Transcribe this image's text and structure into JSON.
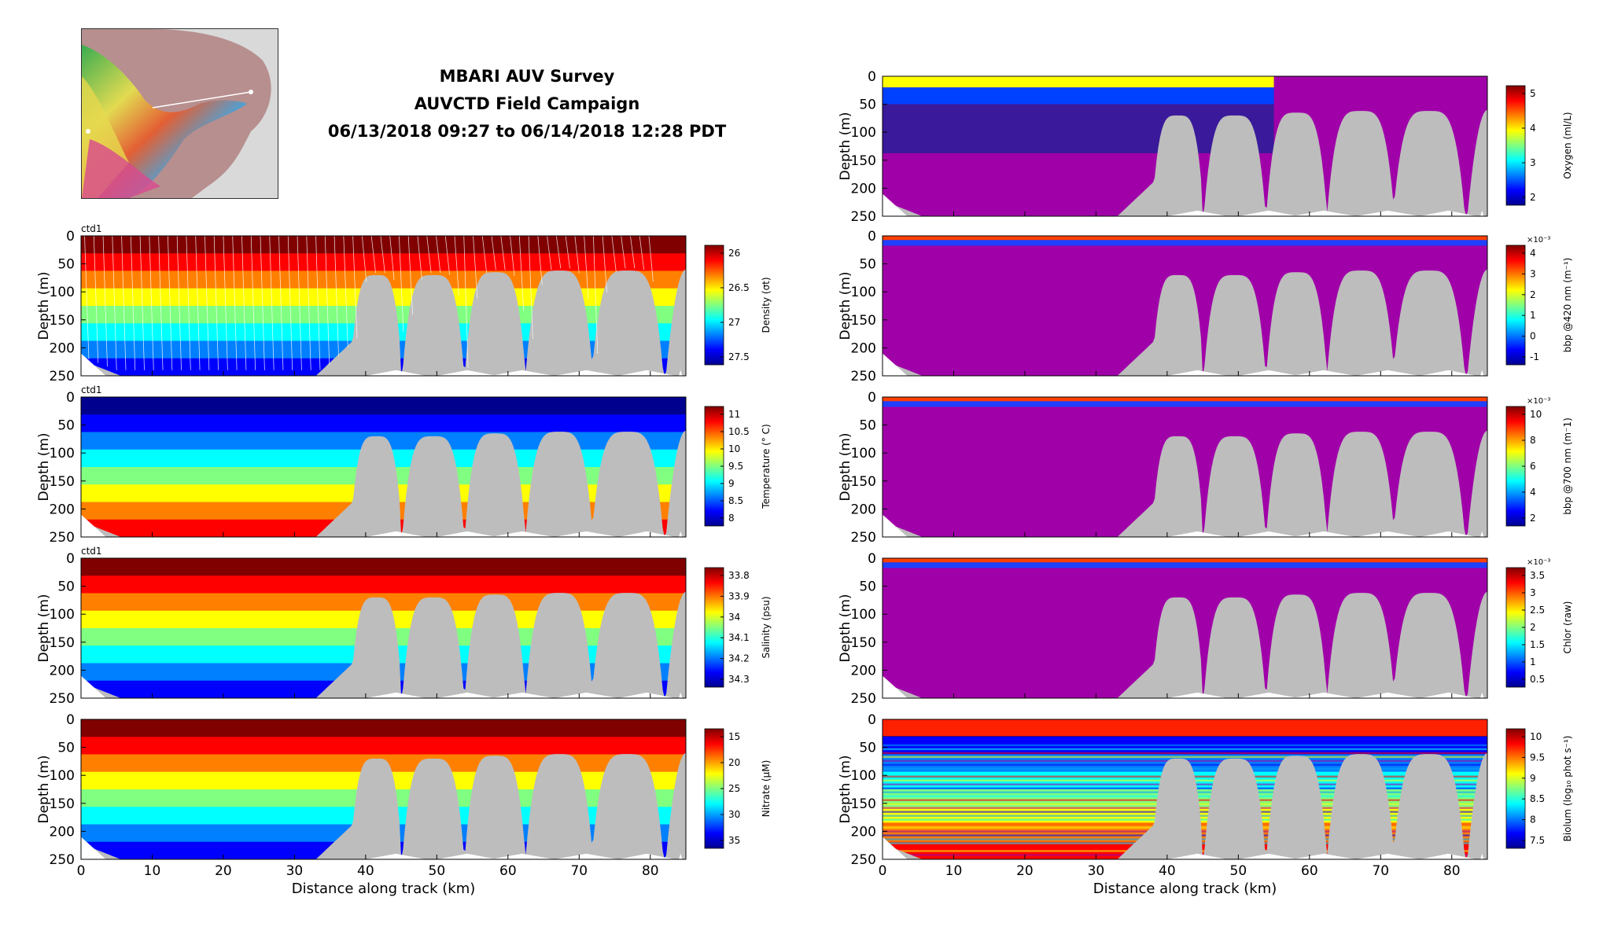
{
  "header": {
    "lines": [
      "MBARI AUV Survey",
      "AUVCTD Field Campaign",
      "06/13/2018 09:27 to 06/14/2018 12:28 PDT"
    ]
  },
  "common": {
    "xlabel": "Distance along track (km)",
    "ylabel": "Depth (m)",
    "xticks": [
      0,
      10,
      20,
      30,
      40,
      50,
      60,
      70,
      80
    ],
    "yticks": [
      0,
      50,
      100,
      150,
      200,
      250
    ],
    "xlim": [
      0,
      85
    ],
    "ylim": [
      0,
      250
    ],
    "seafloor_color": "#bdbdbd"
  },
  "chart_data": [
    {
      "id": "density",
      "type": "heatmap",
      "panel_label": "ctd1",
      "cbar_label": "Density (σt)",
      "cbar_ticks": [
        "26",
        "26.5",
        "27",
        "27.5"
      ],
      "cmap": "jet_r",
      "profile_lines": true
    },
    {
      "id": "temperature",
      "type": "heatmap",
      "panel_label": "ctd1",
      "cbar_label": "Temperature (° C)",
      "cbar_ticks": [
        "11",
        "10.5",
        "10",
        "9.5",
        "9",
        "8.5",
        "8"
      ],
      "cmap": "jet"
    },
    {
      "id": "salinity",
      "type": "heatmap",
      "panel_label": "ctd1",
      "cbar_label": "Salinity (psu)",
      "cbar_ticks": [
        "33.8",
        "33.9",
        "34",
        "34.1",
        "34.2",
        "34.3"
      ],
      "cmap": "jet_r"
    },
    {
      "id": "nitrate",
      "type": "heatmap",
      "panel_label": "",
      "cbar_label": "Nitrate (μM)",
      "cbar_ticks": [
        "15",
        "20",
        "25",
        "30",
        "35"
      ],
      "cmap": "jet_r"
    },
    {
      "id": "oxygen",
      "type": "heatmap",
      "panel_label": "",
      "cbar_label": "Oxygen (ml/L)",
      "cbar_ticks": [
        "5",
        "4",
        "3",
        "2"
      ],
      "cmap": "jet"
    },
    {
      "id": "bbp420",
      "type": "heatmap",
      "panel_label": "",
      "cbar_label": "bbp @420 nm (m⁻¹)",
      "cbar_ticks": [
        "4",
        "3",
        "2",
        "1",
        "0",
        "-1"
      ],
      "cbar_exp": "×10⁻³",
      "cmap": "jet"
    },
    {
      "id": "bbp700",
      "type": "heatmap",
      "panel_label": "",
      "cbar_label": "bbp @700 nm (m⁻1)",
      "cbar_ticks": [
        "10",
        "8",
        "6",
        "4",
        "2"
      ],
      "cbar_exp": "×10⁻³",
      "cmap": "jet"
    },
    {
      "id": "chlor",
      "type": "heatmap",
      "panel_label": "",
      "cbar_label": "Chlor (raw)",
      "cbar_ticks": [
        "3.5",
        "3",
        "2.5",
        "2",
        "1.5",
        "1",
        "0.5"
      ],
      "cbar_exp": "×10⁻³",
      "cmap": "jet"
    },
    {
      "id": "biolum",
      "type": "heatmap",
      "panel_label": "",
      "cbar_label": "Biolum (log₁₀ phot s⁻¹)",
      "cbar_ticks": [
        "10",
        "9.5",
        "9",
        "8.5",
        "8",
        "7.5"
      ],
      "cmap": "jet"
    }
  ]
}
